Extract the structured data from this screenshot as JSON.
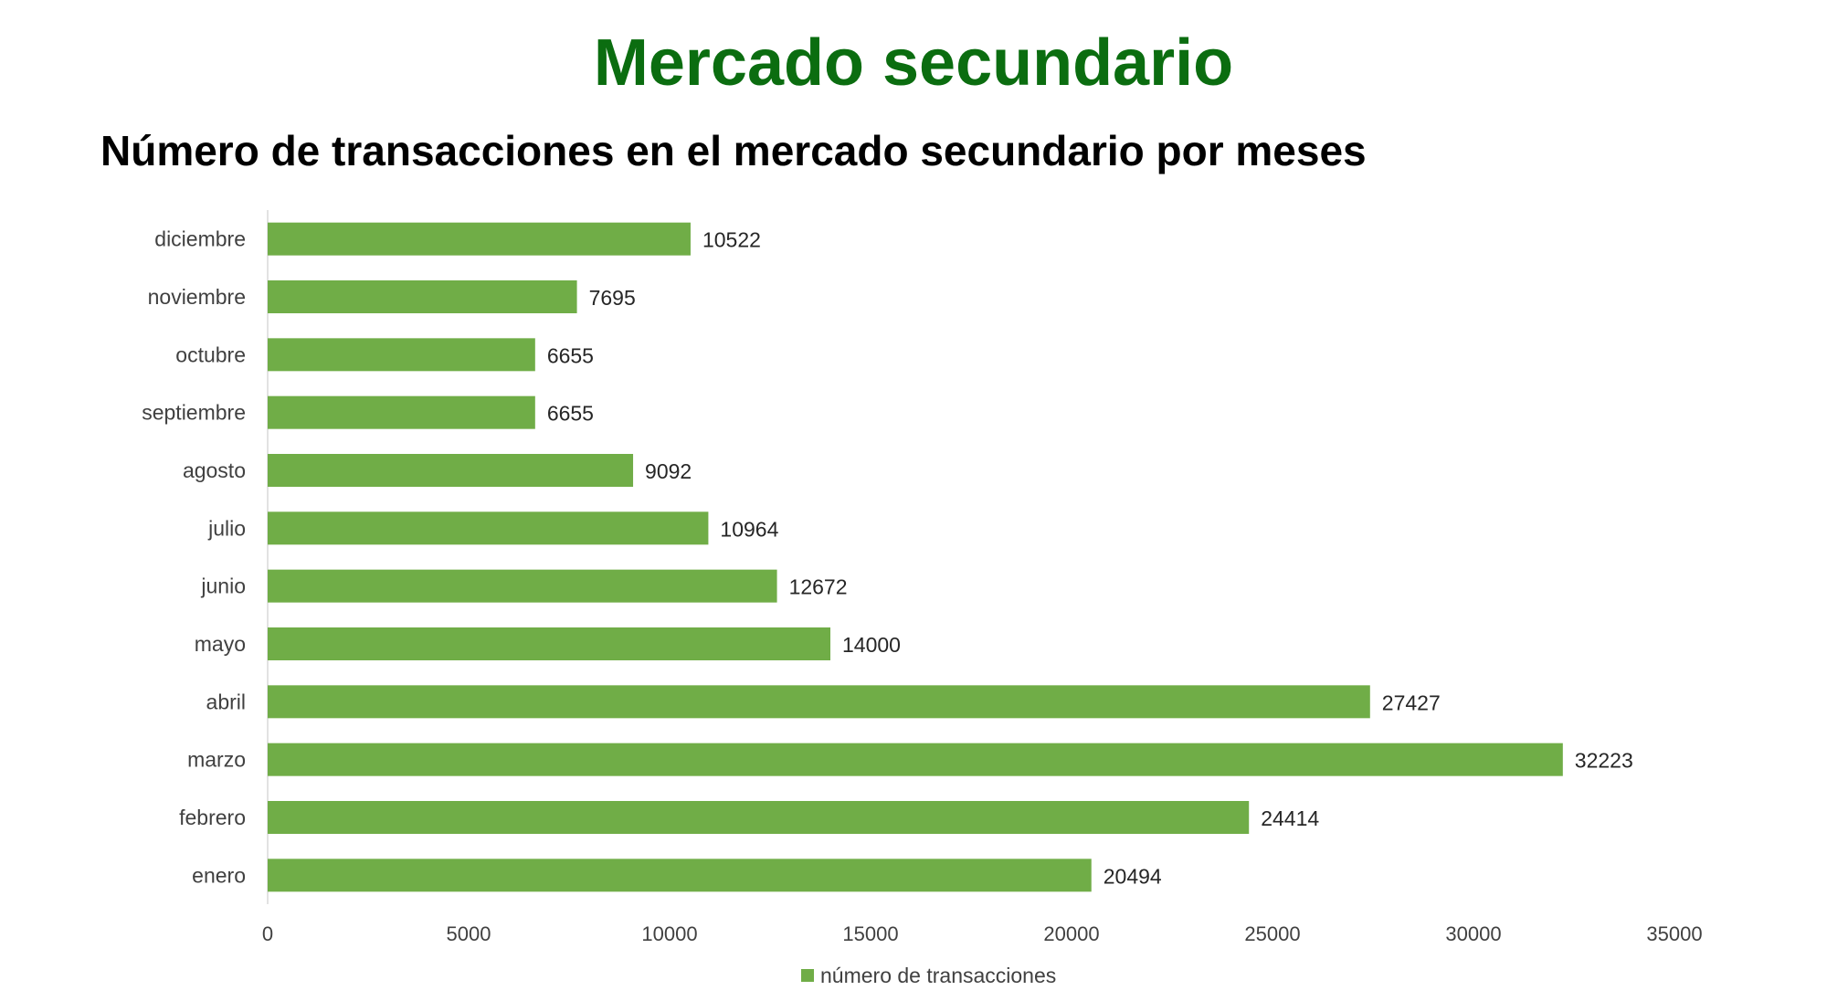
{
  "page": {
    "title": "Mercado secundario"
  },
  "chart_data": {
    "type": "bar",
    "orientation": "horizontal",
    "title": "Número de transacciones en el mercado secundario por meses",
    "categories": [
      "enero",
      "febrero",
      "marzo",
      "abril",
      "mayo",
      "junio",
      "julio",
      "agosto",
      "septiembre",
      "octubre",
      "noviembre",
      "diciembre"
    ],
    "series": [
      {
        "name": "número de transacciones",
        "values": [
          20494,
          24414,
          32223,
          27427,
          14000,
          12672,
          10964,
          9092,
          6655,
          6655,
          7695,
          10522
        ],
        "color": "#70ad47"
      }
    ],
    "xlim": [
      0,
      35000
    ],
    "xticks": [
      "0",
      "5000",
      "10000",
      "15000",
      "20000",
      "25000",
      "30000",
      "35000"
    ],
    "grid": false,
    "data_labels": true,
    "legend_position": "bottom"
  }
}
